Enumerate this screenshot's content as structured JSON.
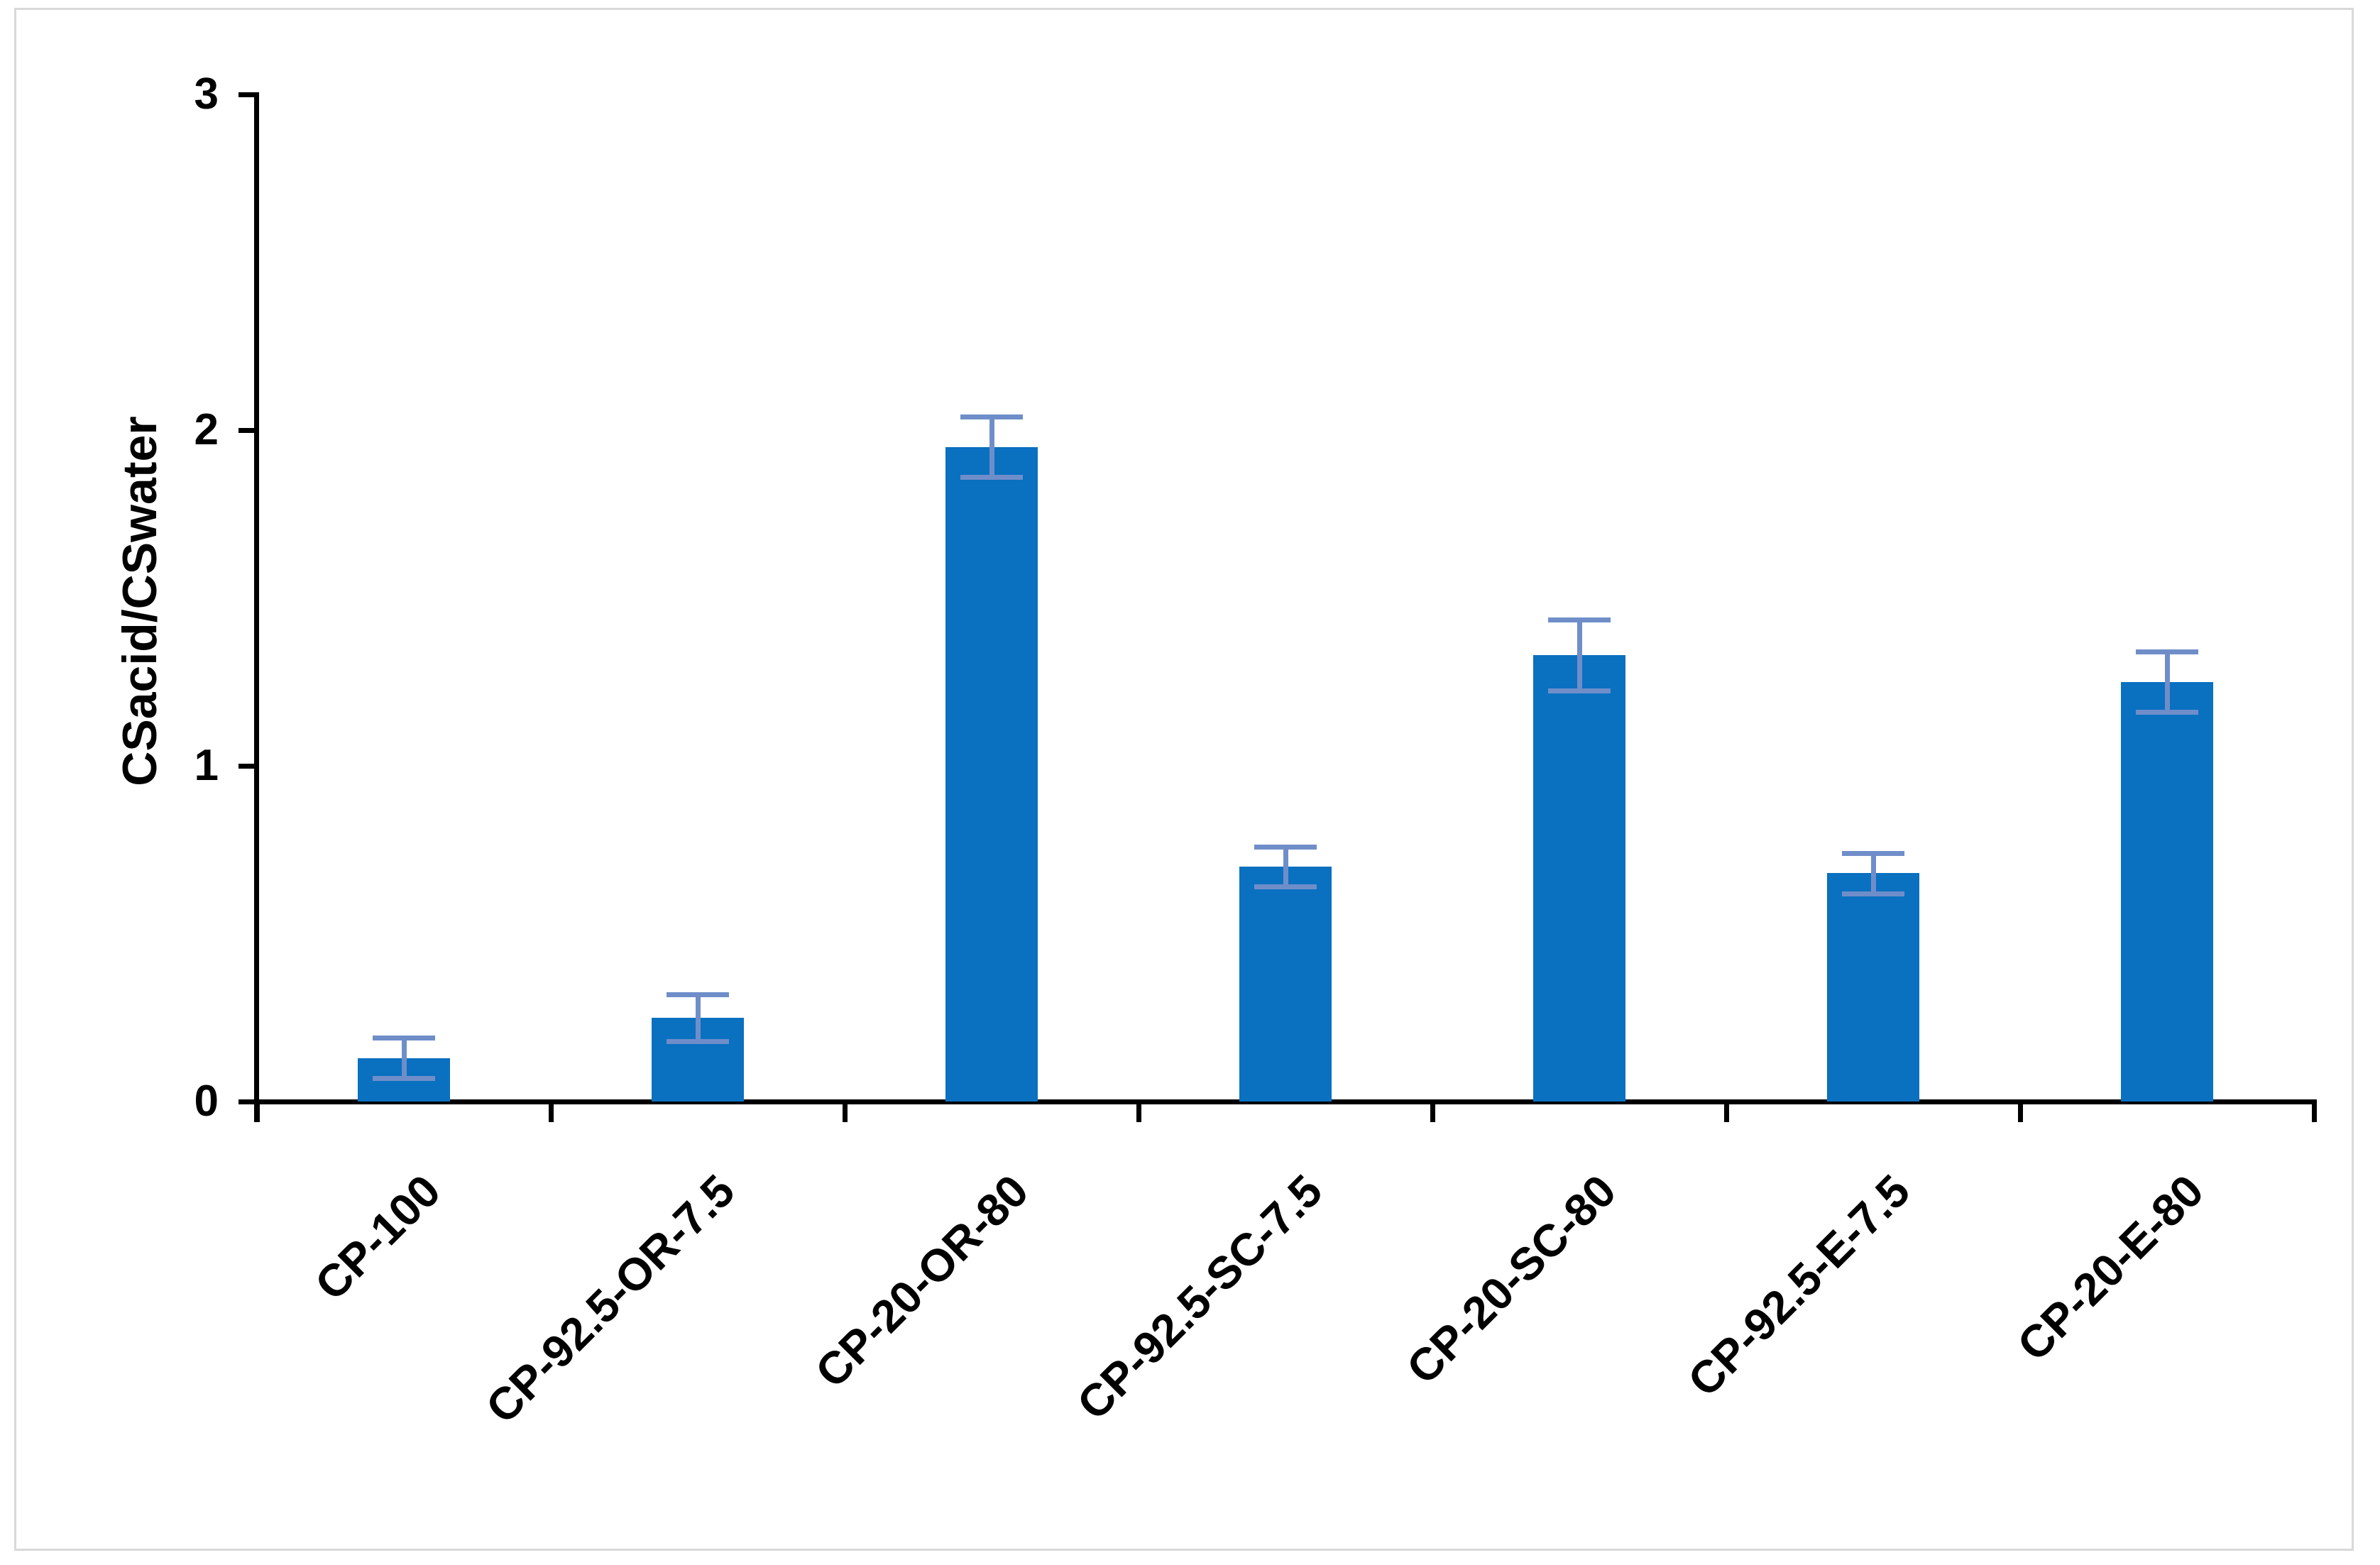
{
  "chart_data": {
    "type": "bar",
    "title": "",
    "xlabel": "",
    "ylabel": "CSacid/CSwater",
    "categories": [
      "CP-100",
      "CP-92.5-OR-7.5",
      "CP-20-OR-80",
      "CP-92.5-SC-7.5",
      "CP-20-SC-80",
      "CP-92.5-E-7.5",
      "CP-20-E-80"
    ],
    "values": [
      0.13,
      0.25,
      1.95,
      0.7,
      1.33,
      0.68,
      1.25
    ],
    "error_bars": [
      0.06,
      0.07,
      0.09,
      0.06,
      0.105,
      0.06,
      0.09
    ],
    "yticks": [
      0,
      1,
      2,
      3
    ],
    "ytick_labels": [
      "0",
      "1",
      "2",
      "3"
    ],
    "ylim": [
      0,
      3
    ],
    "grid": false,
    "legend": null,
    "series_name": "CSacid/CSwater",
    "colors": {
      "bar": "#0A70C0",
      "error_bar": "#6F8EC9",
      "axis": "#000000",
      "text": "#000000",
      "frame_border": "#D9D9D9",
      "background": "#FFFFFF"
    }
  }
}
